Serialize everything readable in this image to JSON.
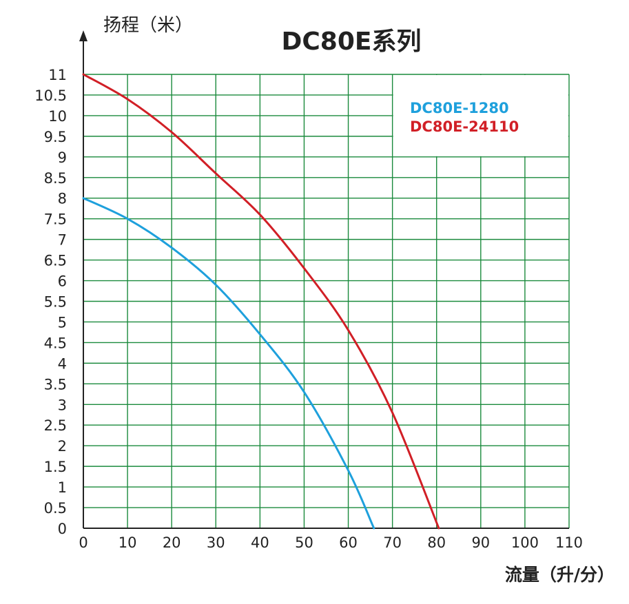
{
  "chart_data": {
    "type": "line",
    "title": "DC80E系列",
    "ylabel": "扬程（米）",
    "xlabel": "流量（升/分）",
    "xlim": [
      0,
      110
    ],
    "ylim": [
      0,
      11
    ],
    "x_ticks": [
      "0",
      "10",
      "20",
      "30",
      "40",
      "50",
      "60",
      "70",
      "80",
      "90",
      "100",
      "110"
    ],
    "y_ticks": [
      "0",
      "0.5",
      "1",
      "1.5",
      "2",
      "2.5",
      "3",
      "3.5",
      "4",
      "4.5",
      "5",
      "5.5",
      "6",
      "6.5",
      "7",
      "7.5",
      "8",
      "8.5",
      "9",
      "9.5",
      "10",
      "10.5",
      "11"
    ],
    "grid": true,
    "grid_color": "#1a8a3c",
    "legend_position": "top-right",
    "series": [
      {
        "name": "DC80E-1280",
        "color": "#1ea0dc",
        "points": [
          [
            0,
            8
          ],
          [
            10,
            7.5
          ],
          [
            20,
            6.8
          ],
          [
            30,
            5.9
          ],
          [
            40,
            4.7
          ],
          [
            50,
            3.3
          ],
          [
            60,
            1.4
          ],
          [
            65.8,
            0
          ]
        ]
      },
      {
        "name": "DC80E-24110",
        "color": "#d11f26",
        "points": [
          [
            0,
            11
          ],
          [
            10,
            10.4
          ],
          [
            20,
            9.6
          ],
          [
            30,
            8.6
          ],
          [
            40,
            7.6
          ],
          [
            50,
            6.3
          ],
          [
            60,
            4.8
          ],
          [
            70,
            2.8
          ],
          [
            80.5,
            0
          ]
        ]
      }
    ]
  }
}
